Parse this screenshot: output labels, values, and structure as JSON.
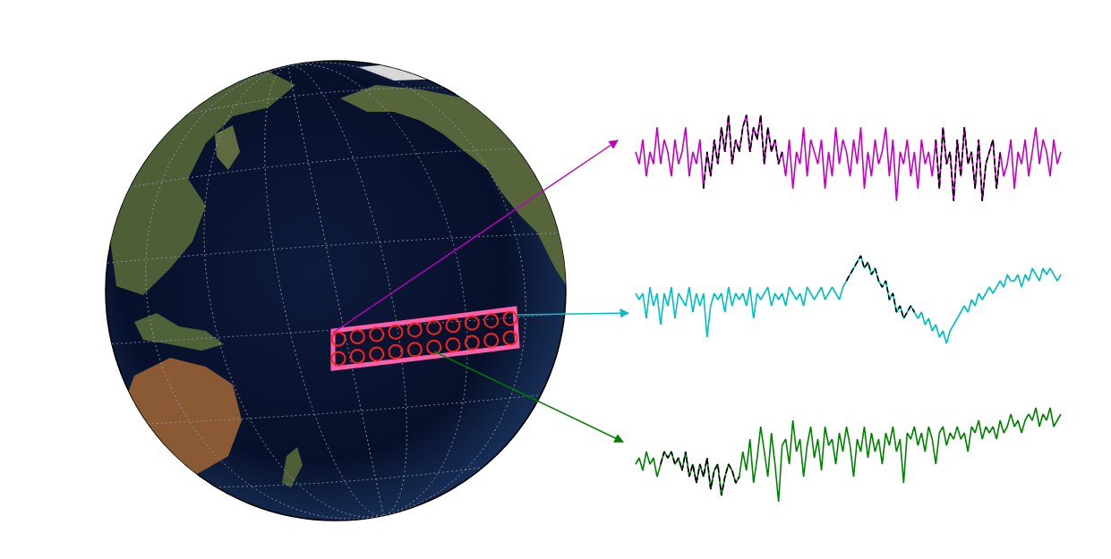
{
  "chart_data": [
    {
      "type": "line",
      "tick_labels": false,
      "xlim": [
        0,
        119
      ],
      "ylim": [
        0,
        10
      ],
      "series": [
        {
          "color": "#c000c0",
          "values": [
            6,
            5,
            7,
            4,
            6,
            5,
            8,
            5,
            7,
            6,
            4,
            7,
            5,
            6,
            8,
            4,
            6,
            5,
            7,
            3,
            6,
            4,
            7,
            5,
            8,
            6,
            9,
            5,
            7,
            6,
            8,
            9,
            6,
            8,
            7,
            9,
            5,
            8,
            6,
            7,
            5,
            6,
            4,
            7,
            3,
            6,
            5,
            8,
            4,
            7,
            6,
            5,
            7,
            3,
            6,
            4,
            8,
            5,
            7,
            6,
            4,
            7,
            5,
            8,
            3,
            6,
            4,
            7,
            5,
            6,
            8,
            4,
            7,
            2,
            6,
            5,
            7,
            4,
            6,
            3,
            7,
            5,
            6,
            4,
            7,
            3,
            8,
            5,
            6,
            2,
            7,
            4,
            8,
            5,
            6,
            3,
            7,
            2,
            5,
            6,
            7,
            3,
            6,
            4,
            5,
            7,
            3,
            6,
            5,
            7,
            4,
            6,
            8,
            5,
            7,
            6,
            4,
            7,
            5,
            6
          ]
        },
        {
          "color": "#000000",
          "line_style": "dashed",
          "values": [
            null,
            null,
            null,
            null,
            null,
            null,
            null,
            null,
            null,
            null,
            null,
            null,
            null,
            null,
            null,
            null,
            null,
            null,
            null,
            3,
            6,
            4,
            7,
            5,
            8,
            6,
            9,
            5,
            7,
            6,
            8,
            9,
            6,
            8,
            7,
            9,
            5,
            8,
            6,
            7,
            5,
            6,
            null,
            null,
            null,
            null,
            null,
            null,
            null,
            null,
            null,
            null,
            null,
            null,
            null,
            null,
            null,
            null,
            null,
            null,
            null,
            null,
            null,
            null,
            null,
            null,
            null,
            null,
            null,
            null,
            null,
            null,
            null,
            null,
            null,
            null,
            null,
            null,
            null,
            null,
            null,
            null,
            null,
            null,
            7,
            3,
            8,
            5,
            6,
            2,
            7,
            4,
            8,
            5,
            6,
            3,
            7,
            2,
            5,
            6,
            7,
            3,
            6,
            null,
            null,
            null,
            null,
            null,
            null,
            null,
            null,
            null,
            null,
            null,
            null,
            null,
            null,
            null,
            null,
            null
          ]
        }
      ]
    },
    {
      "type": "line",
      "tick_labels": false,
      "xlim": [
        0,
        119
      ],
      "ylim": [
        0,
        10
      ],
      "series": [
        {
          "color": "#00bfbf",
          "values": [
            6,
            5.5,
            6,
            4,
            6.5,
            5,
            6,
            3.5,
            6,
            5,
            6.5,
            4,
            6,
            5.5,
            5,
            6.5,
            4.5,
            6,
            5,
            6,
            2.5,
            5,
            6,
            5.5,
            6,
            4.5,
            6.5,
            5,
            6,
            5.5,
            6,
            5,
            6.5,
            4,
            6,
            5.5,
            6,
            6.5,
            5,
            6,
            5.5,
            6,
            5,
            6.5,
            6,
            5.5,
            6,
            5,
            6.5,
            6,
            5.5,
            6,
            6.5,
            5.5,
            6,
            6.5,
            6,
            5.5,
            6.5,
            7,
            7.5,
            8,
            8.5,
            9,
            8,
            8.5,
            7.5,
            8,
            7,
            6.5,
            7,
            5.5,
            6,
            4.5,
            5,
            4,
            4.5,
            5,
            4.5,
            4,
            4.5,
            3.5,
            4,
            3,
            3.5,
            2.5,
            3,
            2,
            3,
            3.5,
            4,
            4.5,
            5,
            4.5,
            5.5,
            5,
            6,
            5.5,
            6,
            6.5,
            6,
            6.5,
            7,
            6.5,
            7.5,
            7,
            7,
            7.5,
            6.5,
            7.5,
            7,
            8,
            7.5,
            7,
            8,
            7.5,
            8,
            7.5,
            7,
            7.5
          ]
        },
        {
          "color": "#000000",
          "line_style": "dashed",
          "values": [
            null,
            null,
            null,
            null,
            null,
            null,
            null,
            null,
            null,
            null,
            null,
            null,
            null,
            null,
            null,
            null,
            null,
            null,
            null,
            null,
            null,
            null,
            null,
            null,
            null,
            null,
            null,
            null,
            null,
            null,
            null,
            null,
            null,
            null,
            null,
            null,
            null,
            null,
            null,
            null,
            null,
            null,
            null,
            null,
            null,
            null,
            null,
            null,
            null,
            null,
            null,
            null,
            null,
            null,
            null,
            null,
            null,
            null,
            null,
            7,
            7.5,
            8,
            8.5,
            9,
            8,
            8.5,
            7.5,
            8,
            7,
            6.5,
            7,
            5.5,
            6,
            4.5,
            5,
            4,
            4.5,
            5,
            4.5,
            null,
            null,
            null,
            null,
            null,
            null,
            null,
            null,
            null,
            null,
            null,
            null,
            null,
            null,
            null,
            null,
            null,
            null,
            null,
            null,
            null,
            null,
            null,
            null,
            null,
            null,
            null,
            null,
            null,
            null,
            null,
            null,
            null,
            null,
            null,
            null,
            null,
            null,
            null,
            null,
            null
          ]
        }
      ]
    },
    {
      "type": "line",
      "tick_labels": false,
      "xlim": [
        0,
        119
      ],
      "ylim": [
        0,
        10
      ],
      "series": [
        {
          "color": "#008000",
          "values": [
            4,
            4.5,
            3.5,
            5,
            4,
            4.5,
            3,
            4,
            5,
            4.5,
            5,
            4,
            4.5,
            3.5,
            5,
            3,
            4,
            2.5,
            4,
            3,
            4.5,
            2,
            3.5,
            4,
            1.5,
            3,
            4,
            3.5,
            2.5,
            3,
            5,
            3.5,
            6,
            2.5,
            4.5,
            7,
            5,
            3,
            6.5,
            4,
            1,
            5.5,
            6,
            4,
            7.5,
            5,
            6,
            3,
            5.5,
            7,
            4.5,
            6,
            3.5,
            7,
            5.5,
            6,
            4,
            6.5,
            5,
            7,
            5.5,
            3,
            6,
            5,
            7,
            4.5,
            6.5,
            5,
            6,
            4,
            6.5,
            5.5,
            7,
            5,
            6,
            2.5,
            6.5,
            6,
            7,
            5.5,
            6.5,
            5,
            7,
            6,
            4,
            6.5,
            7,
            5.5,
            6.5,
            6,
            7,
            6,
            6.5,
            5,
            7,
            6.5,
            7.5,
            6,
            7,
            6.5,
            7,
            6,
            7.5,
            6.5,
            7,
            8,
            7,
            7.5,
            6.5,
            7.5,
            8,
            7.5,
            8.5,
            7,
            8,
            7.5,
            8.5,
            7,
            7.5,
            8
          ]
        },
        {
          "color": "#000000",
          "line_style": "dashed",
          "values": [
            null,
            null,
            null,
            null,
            null,
            null,
            null,
            4,
            5,
            4.5,
            5,
            4,
            4.5,
            3.5,
            5,
            3,
            4,
            2.5,
            4,
            3,
            4.5,
            2,
            3.5,
            4,
            1.5,
            3,
            4,
            3.5,
            2.5,
            3,
            null,
            null,
            null,
            null,
            null,
            null,
            null,
            null,
            null,
            null,
            null,
            null,
            null,
            null,
            null,
            null,
            null,
            null,
            null,
            null,
            null,
            null,
            null,
            null,
            null,
            null,
            null,
            null,
            null,
            null,
            null,
            null,
            null,
            null,
            null,
            null,
            null,
            null,
            null,
            null,
            null,
            null,
            null,
            null,
            null,
            null,
            null,
            null,
            null,
            null,
            null,
            null,
            null,
            null,
            null,
            null,
            null,
            null,
            null,
            null,
            null,
            null,
            null,
            null,
            null,
            null,
            null,
            null,
            null,
            null,
            null,
            null,
            null,
            null,
            null,
            null,
            null,
            null,
            null,
            null,
            null,
            null,
            null,
            null,
            null,
            null,
            null,
            null,
            null,
            null
          ]
        }
      ]
    }
  ]
}
